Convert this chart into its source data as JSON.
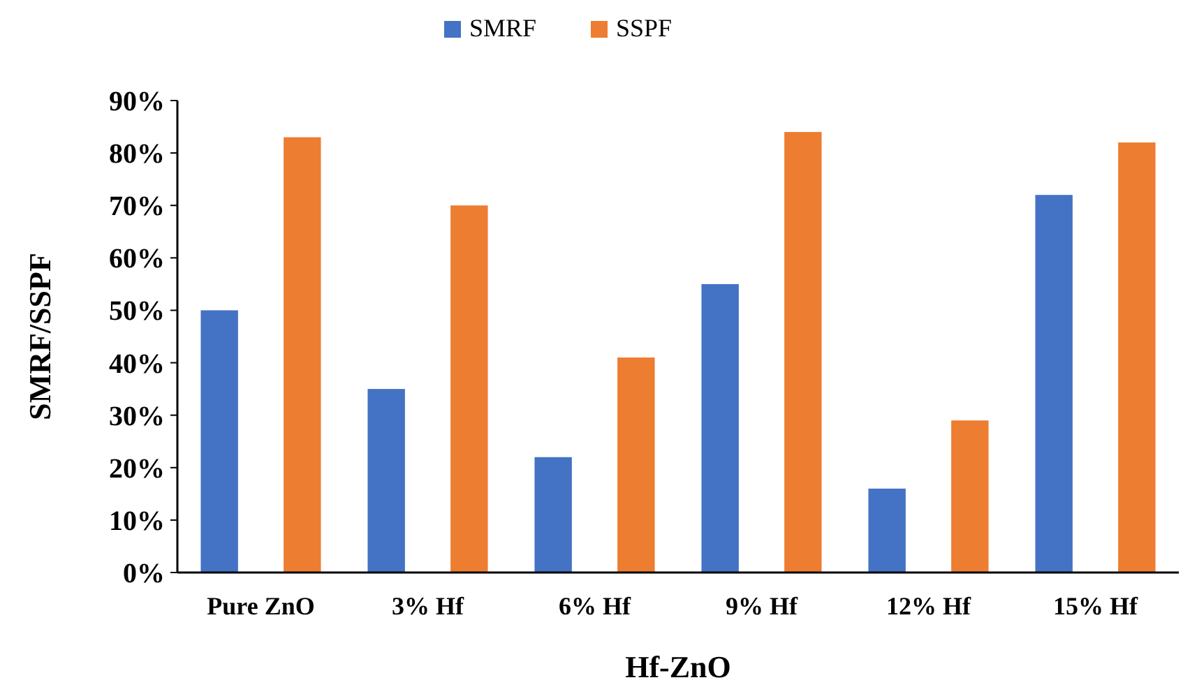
{
  "chart_data": {
    "type": "bar",
    "xlabel": "Hf-ZnO",
    "ylabel": "SMRF/SSPF",
    "categories": [
      "Pure ZnO",
      "3% Hf",
      "6% Hf",
      "9% Hf",
      "12% Hf",
      "15% Hf"
    ],
    "series": [
      {
        "name": "SMRF",
        "color": "#4472c4",
        "values": [
          50,
          35,
          22,
          55,
          16,
          72
        ]
      },
      {
        "name": "SSPF",
        "color": "#ed7d31",
        "values": [
          83,
          70,
          41,
          84,
          29,
          82
        ]
      }
    ],
    "ylim": [
      0,
      90
    ],
    "yticks": [
      {
        "value": 0,
        "label": "0%"
      },
      {
        "value": 10,
        "label": "10%"
      },
      {
        "value": 20,
        "label": "20%"
      },
      {
        "value": 30,
        "label": "30%"
      },
      {
        "value": 40,
        "label": "40%"
      },
      {
        "value": 50,
        "label": "50%"
      },
      {
        "value": 60,
        "label": "60%"
      },
      {
        "value": 70,
        "label": "70%"
      },
      {
        "value": 80,
        "label": "80%"
      },
      {
        "value": 90,
        "label": "90%"
      }
    ],
    "grid": false,
    "legend": "top"
  }
}
